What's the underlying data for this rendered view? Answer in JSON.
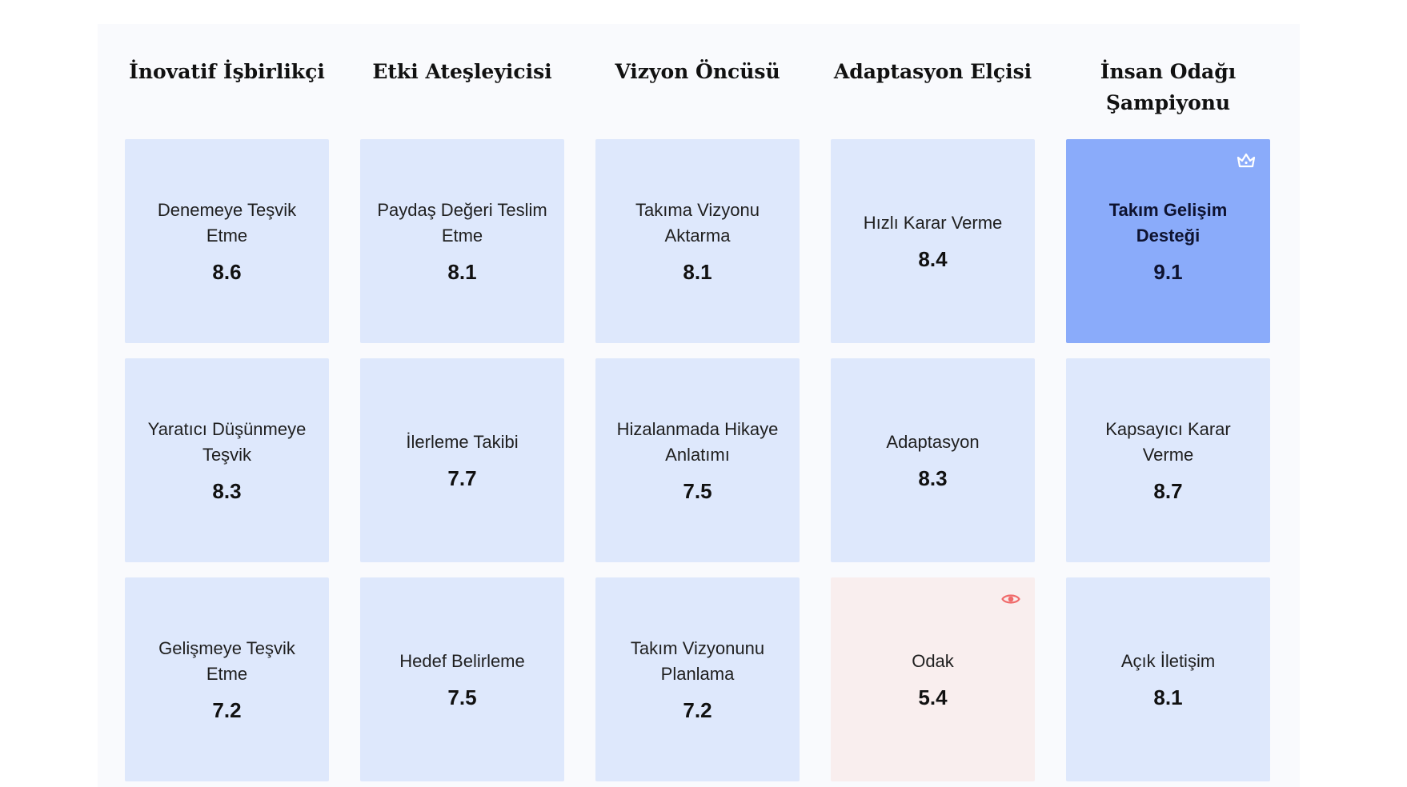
{
  "columns": [
    {
      "header": "İnovatif İşbirlikçi"
    },
    {
      "header": "Etki Ateşleyicisi"
    },
    {
      "header": "Vizyon Öncüsü"
    },
    {
      "header": "Adaptasyon Elçisi"
    },
    {
      "header": "İnsan Odağı Şampiyonu"
    }
  ],
  "rows": [
    [
      {
        "label": "Denemeye Teşvik Etme",
        "score": "8.6"
      },
      {
        "label": "Paydaş Değeri Teslim Etme",
        "score": "8.1"
      },
      {
        "label": "Takıma Vizyonu Aktarma",
        "score": "8.1"
      },
      {
        "label": "Hızlı Karar Verme",
        "score": "8.4"
      },
      {
        "label": "Takım Gelişim Desteği",
        "score": "9.1",
        "status": "top",
        "icon": "crown-icon",
        "accent": "#8aabfa"
      }
    ],
    [
      {
        "label": "Yaratıcı Düşünmeye Teşvik",
        "score": "8.3"
      },
      {
        "label": "İlerleme Takibi",
        "score": "7.7"
      },
      {
        "label": "Hizalanmada Hikaye Anlatımı",
        "score": "7.5"
      },
      {
        "label": "Adaptasyon",
        "score": "8.3"
      },
      {
        "label": "Kapsayıcı Karar Verme",
        "score": "8.7"
      }
    ],
    [
      {
        "label": "Gelişmeye Teşvik Etme",
        "score": "7.2"
      },
      {
        "label": "Hedef Belirleme",
        "score": "7.5"
      },
      {
        "label": "Takım Vizyonunu Planlama",
        "score": "7.2"
      },
      {
        "label": "Odak",
        "score": "5.4",
        "status": "alert",
        "icon": "eye-icon",
        "accent": "#f06a6a"
      },
      {
        "label": "Açık İletişim",
        "score": "8.1"
      }
    ]
  ],
  "colors": {
    "card": "#dee8fc",
    "top": "#8aabfa",
    "alert": "#f9eeee",
    "panel": "#f9fafd"
  }
}
